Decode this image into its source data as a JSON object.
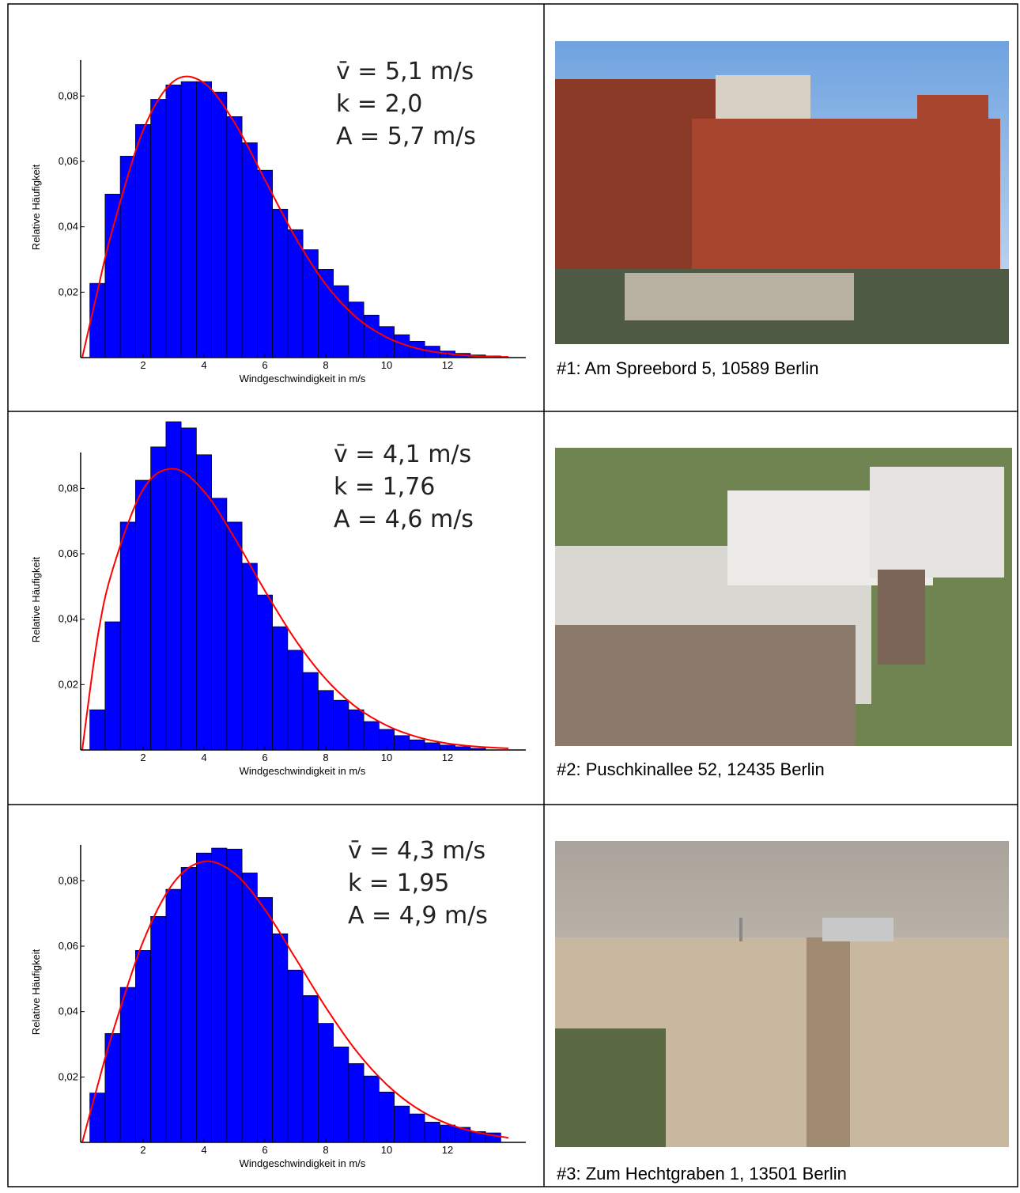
{
  "chart_data": [
    {
      "type": "histogram",
      "xlabel": "Windgeschwindigkeit in m/s",
      "ylabel": "Relative Häufigkeit",
      "annotation": [
        "v̄ = 5,1 m/s",
        "k = 2,0",
        "A = 5,7 m/s"
      ],
      "bins": [
        0.25,
        0.75,
        1.25,
        1.75,
        2.25,
        2.75,
        3.25,
        3.75,
        4.25,
        4.75,
        5.25,
        5.75,
        6.25,
        6.75,
        7.25,
        7.75,
        8.25,
        8.75,
        9.25,
        9.75,
        10.25,
        10.75,
        11.25,
        11.75,
        12.25,
        12.75,
        13.25,
        13.75
      ],
      "values": [
        0.0227,
        0.05,
        0.0616,
        0.0713,
        0.079,
        0.0834,
        0.0844,
        0.0844,
        0.0812,
        0.0737,
        0.0657,
        0.0573,
        0.0454,
        0.0391,
        0.033,
        0.027,
        0.022,
        0.017,
        0.013,
        0.0095,
        0.007,
        0.005,
        0.0035,
        0.002,
        0.0013,
        0.0008,
        0.0005
      ],
      "color": "#0000ff",
      "curve": {
        "color": "#ff0000",
        "x": [
          0,
          0.5,
          1,
          2,
          3,
          4,
          5,
          6,
          7,
          8,
          9,
          10,
          11,
          12,
          13,
          14
        ],
        "values": [
          0,
          0.0203,
          0.0394,
          0.0695,
          0.0845,
          0.084,
          0.0719,
          0.0544,
          0.0368,
          0.0224,
          0.0123,
          0.0062,
          0.0028,
          0.0012,
          0.0004,
          0.0002
        ]
      },
      "xlim": [
        0,
        14.57
      ],
      "ylim": [
        0,
        0.091
      ],
      "xticks": [
        2,
        4,
        6,
        8,
        10,
        12
      ],
      "yticks": [
        {
          "value": 0.02,
          "label": "0,02"
        },
        {
          "value": 0.04,
          "label": "0,04"
        },
        {
          "value": 0.06,
          "label": "0,06"
        },
        {
          "value": 0.08,
          "label": "0,08"
        }
      ]
    },
    {
      "type": "histogram",
      "xlabel": "Windgeschwindigkeit in m/s",
      "ylabel": "Relative Häufigkeit",
      "annotation": [
        "v̄ = 4,1 m/s",
        "k = 1,76",
        "A = 4,6 m/s"
      ],
      "bins": [
        0.25,
        0.75,
        1.25,
        1.75,
        2.25,
        2.75,
        3.25,
        3.75,
        4.25,
        4.75,
        5.25,
        5.75,
        6.25,
        6.75,
        7.25,
        7.75,
        8.25,
        8.75,
        9.25,
        9.75,
        10.25,
        10.75,
        11.25,
        11.75,
        12.25,
        12.75,
        13.25
      ],
      "values": [
        0.0123,
        0.0392,
        0.0697,
        0.0825,
        0.0927,
        0.1004,
        0.0985,
        0.0903,
        0.077,
        0.0697,
        0.0571,
        0.0474,
        0.0377,
        0.0305,
        0.0237,
        0.0182,
        0.0152,
        0.0123,
        0.0087,
        0.0063,
        0.0044,
        0.0031,
        0.0022,
        0.0015,
        0.001,
        0.0005
      ],
      "color": "#0000ff",
      "curve": {
        "color": "#ff0000",
        "x": [
          0,
          0.5,
          1,
          2,
          3,
          4,
          5,
          6,
          7,
          8,
          9,
          10,
          11,
          12,
          13,
          14
        ],
        "values": [
          0,
          0.0342,
          0.0552,
          0.0797,
          0.086,
          0.0791,
          0.0649,
          0.0487,
          0.0337,
          0.0217,
          0.0131,
          0.0075,
          0.004,
          0.002,
          0.001,
          0.0005
        ]
      },
      "xlim": [
        0,
        14.57
      ],
      "ylim": [
        0,
        0.091
      ],
      "xticks": [
        2,
        4,
        6,
        8,
        10,
        12
      ],
      "yticks": [
        {
          "value": 0.02,
          "label": "0,02"
        },
        {
          "value": 0.04,
          "label": "0,04"
        },
        {
          "value": 0.06,
          "label": "0,06"
        },
        {
          "value": 0.08,
          "label": "0,08"
        }
      ]
    },
    {
      "type": "histogram",
      "xlabel": "Windgeschwindigkeit in m/s",
      "ylabel": "Relative Häufigkeit",
      "annotation": [
        "v̄ = 4,3 m/s",
        "k = 1,95",
        "A = 4,9 m/s"
      ],
      "bins": [
        0.25,
        0.75,
        1.25,
        1.75,
        2.25,
        2.75,
        3.25,
        3.75,
        4.25,
        4.75,
        5.25,
        5.75,
        6.25,
        6.75,
        7.25,
        7.75,
        8.25,
        8.75,
        9.25,
        9.75,
        10.25,
        10.75,
        11.25,
        11.75,
        12.25,
        12.75,
        13.25,
        13.75
      ],
      "values": [
        0.0151,
        0.0333,
        0.0474,
        0.0587,
        0.0691,
        0.0774,
        0.0841,
        0.0885,
        0.09,
        0.0897,
        0.0824,
        0.0749,
        0.0638,
        0.0527,
        0.0449,
        0.0364,
        0.0292,
        0.0241,
        0.0203,
        0.0154,
        0.0111,
        0.0087,
        0.0062,
        0.0053,
        0.0046,
        0.0033,
        0.0029
      ],
      "color": "#0000ff",
      "curve": {
        "color": "#ff0000",
        "x": [
          0,
          0.5,
          1,
          2,
          3,
          4,
          5,
          6,
          7,
          8,
          9,
          10,
          11,
          12,
          13,
          14
        ],
        "values": [
          0,
          0.0172,
          0.0336,
          0.0614,
          0.0794,
          0.0859,
          0.0823,
          0.0712,
          0.0564,
          0.0413,
          0.028,
          0.0177,
          0.0104,
          0.0057,
          0.003,
          0.0014
        ]
      },
      "xlim": [
        0,
        14.57
      ],
      "ylim": [
        0,
        0.091
      ],
      "xticks": [
        2,
        4,
        6,
        8,
        10,
        12
      ],
      "yticks": [
        {
          "value": 0.02,
          "label": "0,02"
        },
        {
          "value": 0.04,
          "label": "0,04"
        },
        {
          "value": 0.06,
          "label": "0,06"
        },
        {
          "value": 0.08,
          "label": "0,08"
        }
      ]
    }
  ],
  "captions": [
    "#1: Am Spreebord 5, 10589 Berlin",
    "#2: Puschkinallee 52, 12435 Berlin",
    "#3: Zum Hechtgraben 1, 13501 Berlin"
  ]
}
